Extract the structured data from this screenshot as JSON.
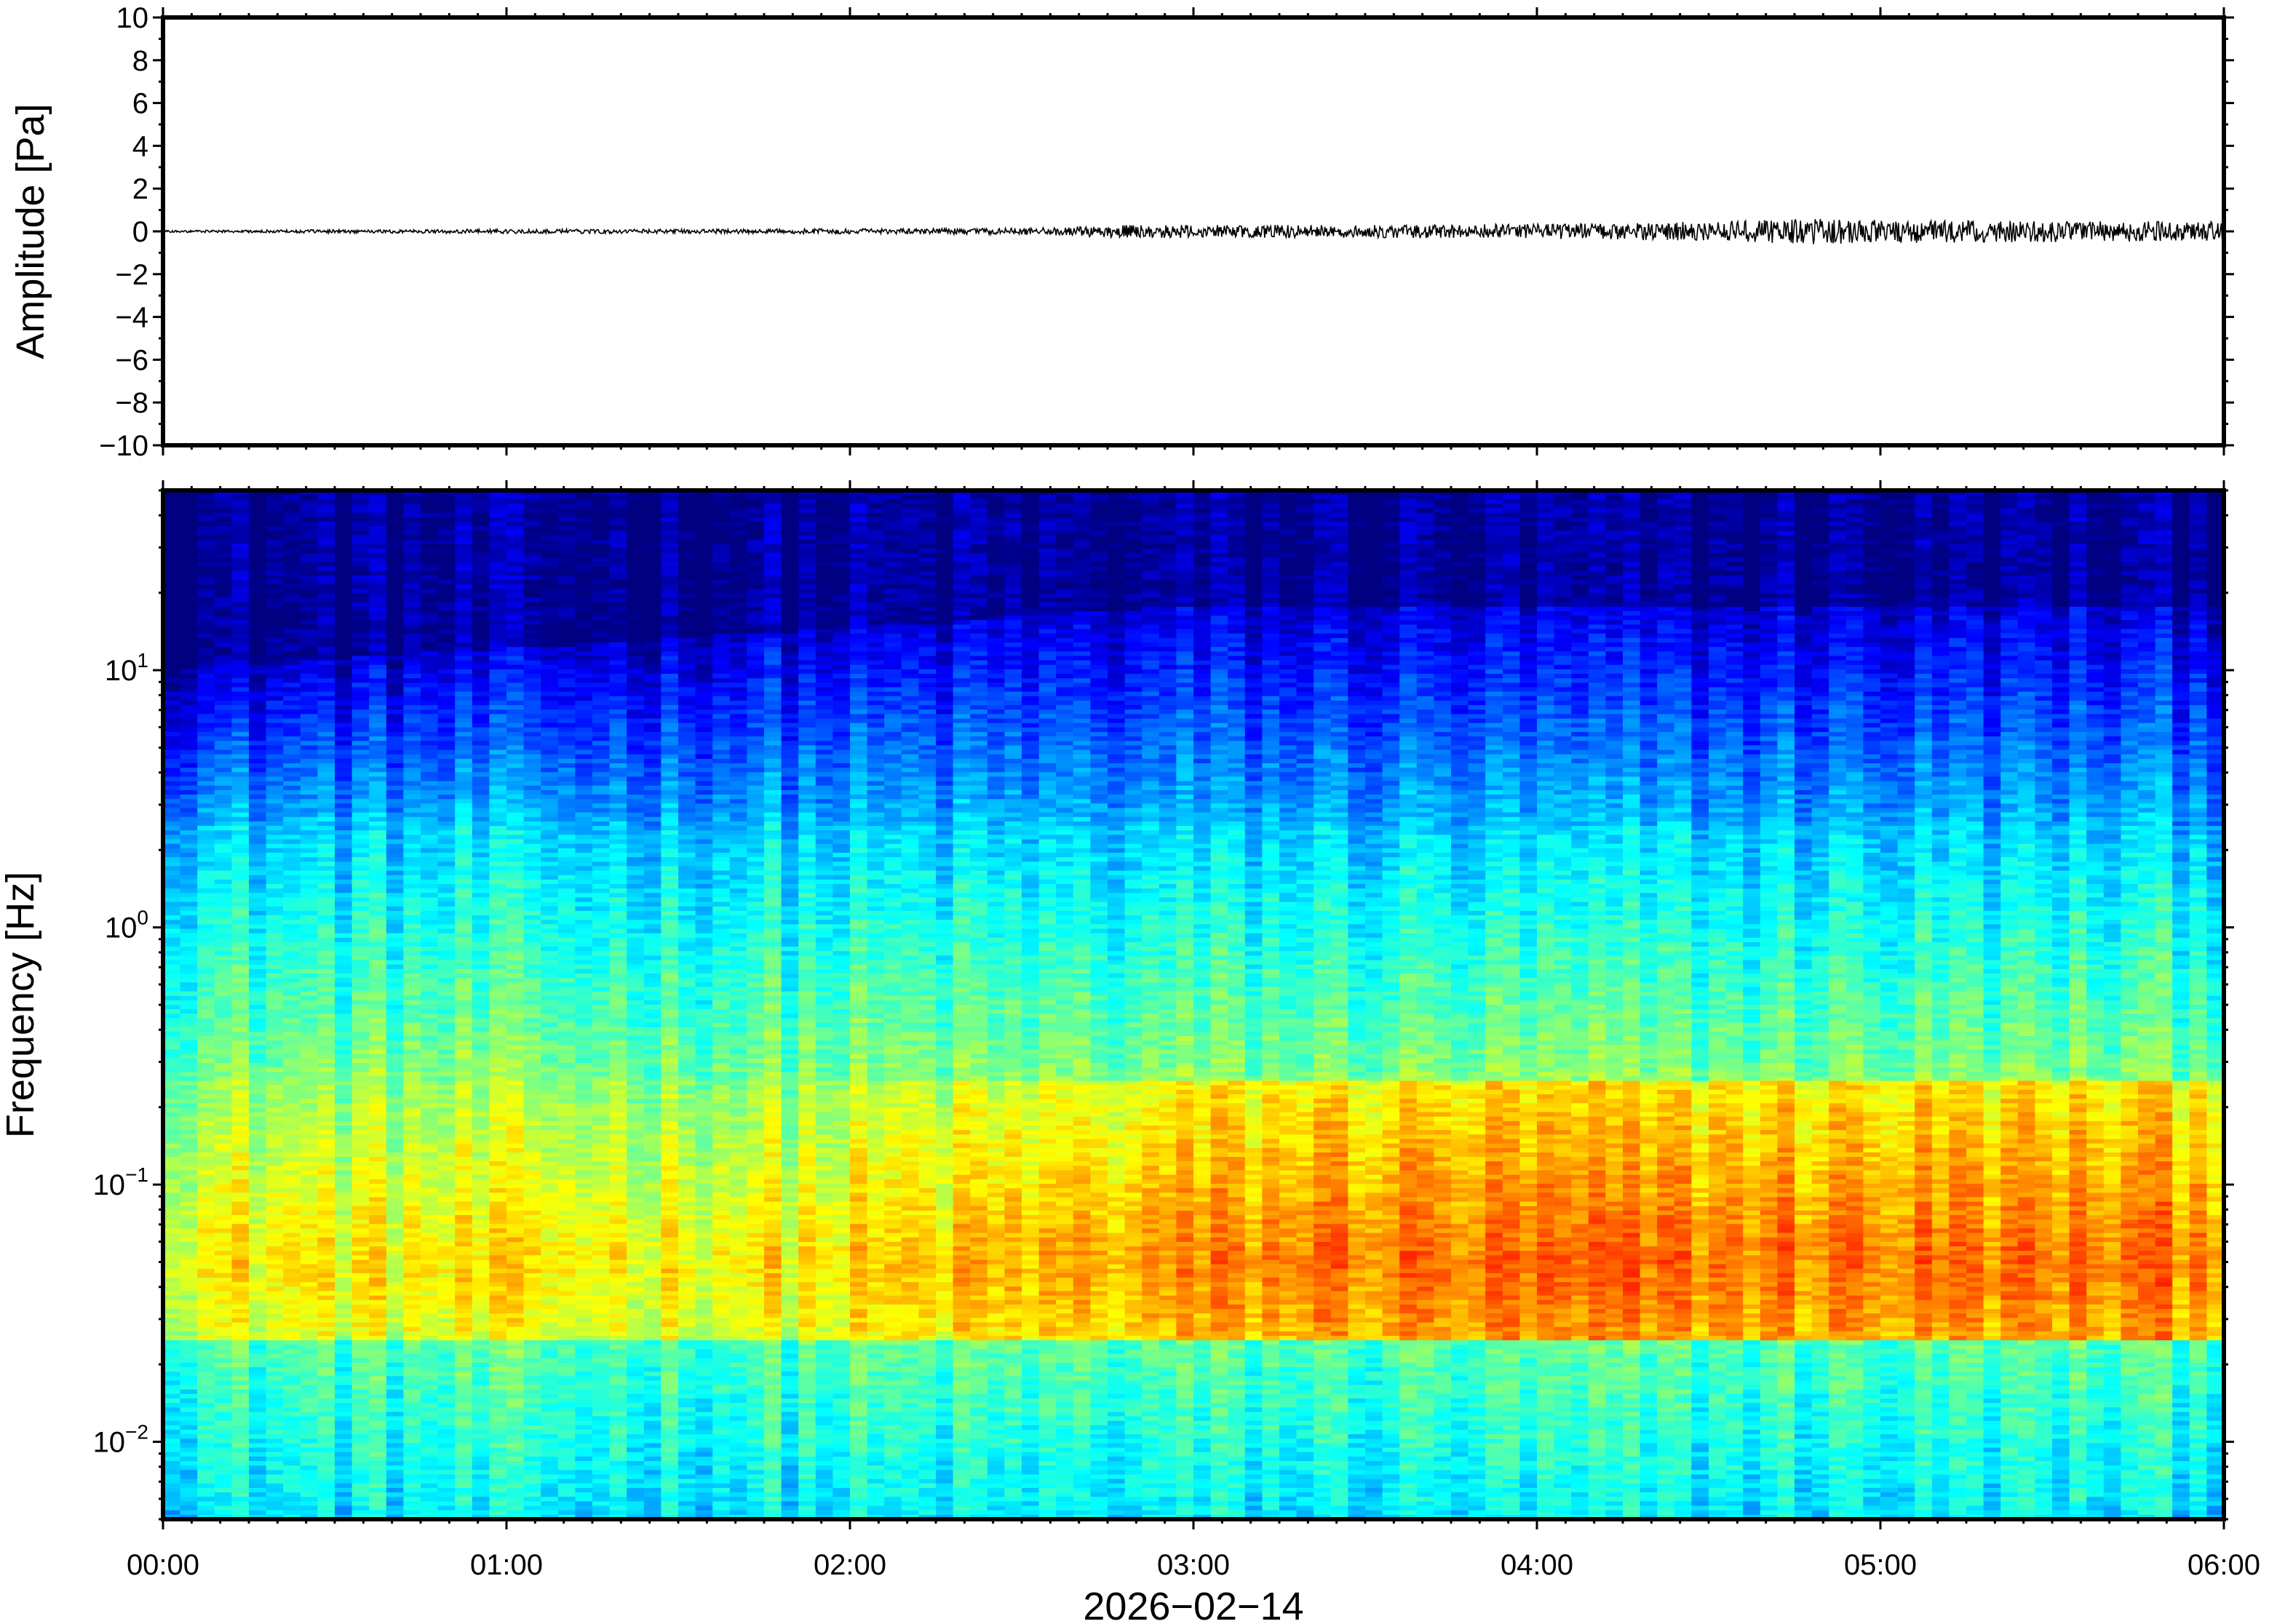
{
  "chart_data": [
    {
      "type": "line",
      "panel": "waveform",
      "ylabel": "Amplitude [Pa]",
      "ylim": [
        -10,
        10
      ],
      "yticks": [
        10,
        8,
        6,
        4,
        2,
        0,
        -2,
        -4,
        -6,
        -8,
        -10
      ],
      "ytick_labels": [
        "10",
        "8",
        "6",
        "4",
        "2",
        "0",
        "−2",
        "−4",
        "−6",
        "−8",
        "−10"
      ],
      "xlim_hours": [
        0,
        6
      ],
      "series_envelope": {
        "hours": [
          0,
          0.5,
          1.0,
          1.5,
          2.0,
          2.5,
          2.8,
          3.0,
          3.5,
          4.0,
          4.5,
          4.8,
          5.0,
          5.5,
          6.0
        ],
        "peak_amplitude_pa": [
          0.05,
          0.08,
          0.1,
          0.1,
          0.12,
          0.15,
          0.3,
          0.3,
          0.3,
          0.35,
          0.45,
          0.6,
          0.55,
          0.5,
          0.45
        ]
      },
      "line_color": "#000000"
    },
    {
      "type": "heatmap",
      "panel": "spectrogram",
      "ylabel": "Frequency [Hz]",
      "yscale": "log",
      "ylim": [
        0.005,
        50
      ],
      "ytick_values": [
        10,
        1,
        0.1,
        0.01
      ],
      "ytick_labels": [
        {
          "base": "10",
          "exp": "1"
        },
        {
          "base": "10",
          "exp": "0"
        },
        {
          "base": "10",
          "exp": "−1"
        },
        {
          "base": "10",
          "exp": "−2"
        }
      ],
      "colormap": "jet",
      "note_band_centers_hz": {
        "high_energy_band": 0.05,
        "low_energy_band_top": 10
      }
    }
  ],
  "xaxis": {
    "xlim_hours": [
      0,
      6
    ],
    "tick_hours": [
      0,
      1,
      2,
      3,
      4,
      5,
      6
    ],
    "tick_labels": [
      "00:00",
      "01:00",
      "02:00",
      "03:00",
      "04:00",
      "05:00",
      "06:00"
    ],
    "date_label": "2026−02−14"
  },
  "colors": {
    "frame": "#000000",
    "trace": "#000000"
  }
}
